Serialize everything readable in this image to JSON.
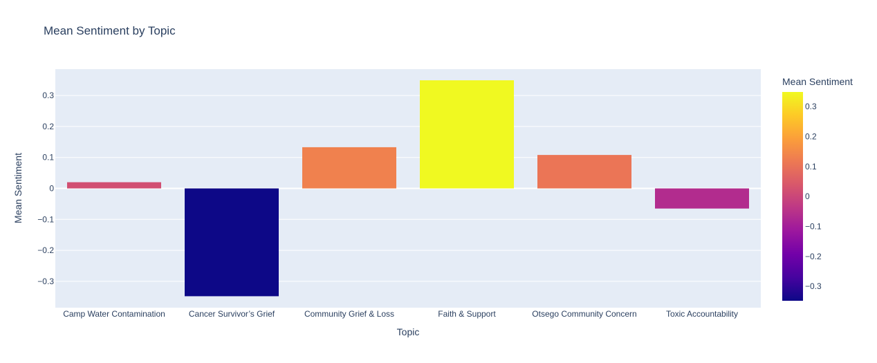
{
  "chart_data": {
    "type": "bar",
    "title": "Mean Sentiment by Topic",
    "xlabel": "Topic",
    "ylabel": "Mean Sentiment",
    "categories": [
      "Camp Water Contamination",
      "Cancer Survivor’s Grief",
      "Community Grief & Loss",
      "Faith & Support",
      "Otsego Community Concern",
      "Toxic Accountability"
    ],
    "values": [
      0.02,
      -0.348,
      0.133,
      0.349,
      0.108,
      -0.065
    ],
    "ylim": [
      -0.385,
      0.385
    ],
    "yticks": [
      0.3,
      0.2,
      0.1,
      0,
      -0.1,
      -0.2,
      -0.3
    ],
    "ytick_labels": [
      "0.3",
      "0.2",
      "0.1",
      "0",
      "−0.1",
      "−0.2",
      "−0.3"
    ],
    "grid": true,
    "colorbar": {
      "title": "Mean Sentiment",
      "range": [
        -0.348,
        0.349
      ],
      "ticks": [
        0.3,
        0.2,
        0.1,
        0,
        -0.1,
        -0.2,
        -0.3
      ],
      "tick_labels": [
        "0.3",
        "0.2",
        "0.1",
        "0",
        "−0.1",
        "−0.2",
        "−0.3"
      ],
      "colorscale": [
        "#0d0887",
        "#46039f",
        "#7201a8",
        "#9c179e",
        "#bd3786",
        "#d8576b",
        "#ed7953",
        "#fb9f3a",
        "#fdca26",
        "#f0f921"
      ]
    },
    "colors": {
      "plot_bg": "#e5ecf6",
      "grid": "#ffffff",
      "text": "#2a3f5f"
    }
  }
}
